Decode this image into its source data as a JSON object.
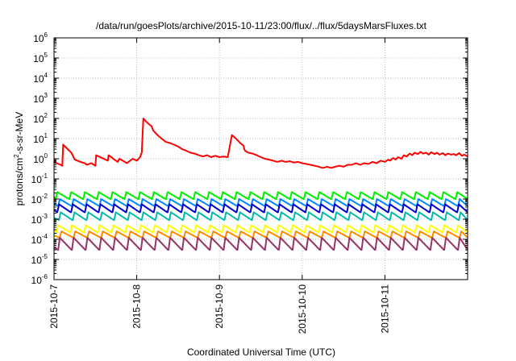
{
  "chart_data": {
    "type": "line",
    "title": "/data/run/goesPlots/archive/2015-10-11/23:00/flux/../flux/5daysMarsFluxes.txt",
    "xlabel": "Coordinated Universal Time (UTC)",
    "ylabel": "protons/cm²-s-sr-MeV",
    "ylabel_parts": {
      "pre": "protons/cm",
      "sup": "2",
      "post": "-s-sr-MeV"
    },
    "y_scale": "log",
    "ylim_exponents": [
      -6,
      6
    ],
    "y_tick_base": "10",
    "y_tick_exponents": [
      "-6",
      "-5",
      "-4",
      "-3",
      "-2",
      "-1",
      "0",
      "1",
      "2",
      "3",
      "4",
      "5",
      "6"
    ],
    "x_range": [
      "2015-10-07 00:00",
      "2015-10-12 00:00"
    ],
    "x_ticks": [
      {
        "label": "2015-10-7",
        "day": 0
      },
      {
        "label": "2015-10-8",
        "day": 1
      },
      {
        "label": "2015-10-9",
        "day": 2
      },
      {
        "label": "2015-10-10",
        "day": 3
      },
      {
        "label": "2015-10-11",
        "day": 4
      }
    ],
    "grid": true,
    "x_unit": "days since 2015-10-07 00:00",
    "series": [
      {
        "color": "#ff0000",
        "description": "proton flux channel (highest)",
        "x": [
          0.0,
          0.03,
          0.08,
          0.1,
          0.11,
          0.21,
          0.25,
          0.32,
          0.37,
          0.4,
          0.45,
          0.5,
          0.51,
          0.65,
          0.66,
          0.73,
          0.77,
          0.79,
          0.83,
          0.88,
          0.95,
          1.0,
          1.04,
          1.06,
          1.08,
          1.1,
          1.13,
          1.18,
          1.2,
          1.25,
          1.3,
          1.35,
          1.4,
          1.45,
          1.5,
          1.55,
          1.6,
          1.65,
          1.7,
          1.75,
          1.8,
          1.85,
          1.9,
          1.95,
          2.0,
          2.05,
          2.1,
          2.15,
          2.2,
          2.25,
          2.29,
          2.3,
          2.31,
          2.35,
          2.4,
          2.45,
          2.5,
          2.55,
          2.6,
          2.65,
          2.7,
          2.75,
          2.8,
          2.85,
          2.9,
          2.95,
          3.0,
          3.05,
          3.1,
          3.15,
          3.2,
          3.25,
          3.3,
          3.35,
          3.4,
          3.45,
          3.5,
          3.55,
          3.6,
          3.65,
          3.7,
          3.75,
          3.8,
          3.85,
          3.9,
          3.95,
          4.0,
          4.04,
          4.06,
          4.1,
          4.13,
          4.16,
          4.2,
          4.23,
          4.26,
          4.3,
          4.33,
          4.36,
          4.4,
          4.43,
          4.46,
          4.5,
          4.53,
          4.56,
          4.6,
          4.63,
          4.66,
          4.7,
          4.73,
          4.76,
          4.8,
          4.83,
          4.86,
          4.9,
          4.93,
          4.96,
          5.0
        ],
        "y": [
          0.8,
          0.6,
          0.5,
          0.45,
          5.0,
          2.0,
          0.9,
          0.7,
          0.6,
          0.5,
          0.6,
          0.45,
          1.5,
          0.8,
          1.5,
          0.9,
          0.7,
          1.0,
          0.8,
          0.6,
          1.0,
          0.8,
          1.2,
          2.0,
          100,
          80,
          60,
          40,
          25,
          15,
          10,
          7,
          6,
          5,
          4,
          3,
          2.5,
          2.0,
          1.8,
          1.5,
          1.3,
          1.5,
          1.2,
          1.4,
          1.2,
          1.3,
          1.2,
          15,
          10,
          6,
          4.5,
          3.0,
          2.5,
          2.0,
          1.8,
          1.5,
          1.2,
          1.0,
          0.9,
          0.8,
          0.7,
          0.8,
          0.7,
          0.75,
          0.65,
          0.7,
          0.6,
          0.55,
          0.5,
          0.45,
          0.4,
          0.35,
          0.4,
          0.35,
          0.4,
          0.45,
          0.4,
          0.5,
          0.5,
          0.6,
          0.5,
          0.6,
          0.55,
          0.7,
          0.6,
          0.8,
          0.7,
          0.9,
          0.8,
          1.1,
          0.9,
          1.2,
          1.0,
          1.5,
          1.3,
          1.8,
          1.5,
          2.0,
          1.7,
          2.2,
          1.8,
          2.0,
          1.6,
          2.1,
          1.7,
          2.0,
          1.6,
          1.9,
          1.5,
          1.8,
          1.6,
          1.7,
          1.5,
          1.9,
          1.4,
          1.6,
          1.3
        ]
      },
      {
        "color": "#00ee00",
        "description": "sawtooth channel",
        "peak": 0.022,
        "trough": 0.01,
        "period_days": 0.1667,
        "phase_days": 0.02
      },
      {
        "color": "#0088ff",
        "description": "sawtooth channel",
        "peak": 0.01,
        "trough": 0.0045,
        "period_days": 0.1667,
        "phase_days": 0.05
      },
      {
        "color": "#0000cc",
        "description": "sawtooth channel",
        "peak": 0.0055,
        "trough": 0.0022,
        "period_days": 0.1667,
        "phase_days": 0.04
      },
      {
        "color": "#00bbaa",
        "description": "sawtooth channel",
        "peak": 0.0022,
        "trough": 0.0009,
        "period_days": 0.1667,
        "phase_days": 0.06
      },
      {
        "color": "#ffff00",
        "description": "sawtooth channel",
        "peak": 0.0005,
        "trough": 0.00022,
        "period_days": 0.1667,
        "phase_days": 0.03
      },
      {
        "color": "#ff8800",
        "description": "sawtooth channel",
        "peak": 0.00025,
        "trough": 0.00012,
        "period_days": 0.1667,
        "phase_days": 0.07
      },
      {
        "color": "#993366",
        "description": "sawtooth channel",
        "peak": 0.00012,
        "trough": 3e-05,
        "period_days": 0.1667,
        "phase_days": 0.05
      }
    ]
  }
}
